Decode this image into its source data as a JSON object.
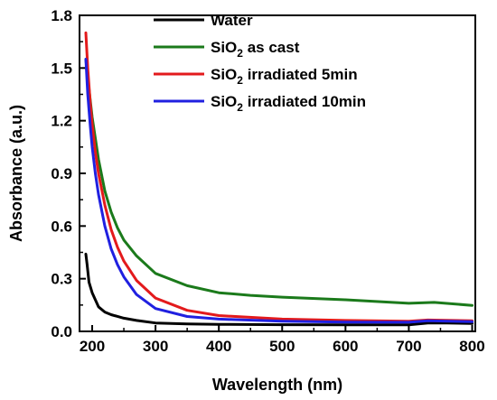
{
  "chart_data": {
    "type": "line",
    "xlabel": "Wavelength (nm)",
    "ylabel": "Absorbance (a.u.)",
    "xlim": [
      180,
      805
    ],
    "ylim": [
      0,
      1.8
    ],
    "x_ticks": [
      200,
      300,
      400,
      500,
      600,
      700,
      800
    ],
    "x_tick_labels": [
      "200",
      "300",
      "400",
      "500",
      "600",
      "700",
      "800"
    ],
    "y_ticks": [
      0.0,
      0.3,
      0.6,
      0.9,
      1.2,
      1.5,
      1.8
    ],
    "y_tick_labels": [
      "0.0",
      "0.3",
      "0.6",
      "0.9",
      "1.2",
      "1.5",
      "1.8"
    ],
    "grid": false,
    "legend_position": "top-right",
    "series": [
      {
        "name": "Water",
        "legend": {
          "main": "Water",
          "sub": "",
          "rest": ""
        },
        "color": "#000000",
        "x": [
          190,
          192,
          195,
          200,
          205,
          210,
          220,
          230,
          250,
          270,
          300,
          350,
          400,
          500,
          600,
          700,
          730,
          760,
          800
        ],
        "y": [
          0.44,
          0.38,
          0.28,
          0.22,
          0.18,
          0.14,
          0.11,
          0.095,
          0.075,
          0.062,
          0.048,
          0.042,
          0.04,
          0.038,
          0.037,
          0.037,
          0.048,
          0.048,
          0.045
        ]
      },
      {
        "name": "SiO2 as cast",
        "legend": {
          "main": "SiO",
          "sub": "2",
          "rest": " as cast"
        },
        "color": "#1b7a1b",
        "x": [
          190,
          195,
          200,
          210,
          220,
          230,
          240,
          250,
          270,
          300,
          350,
          400,
          450,
          500,
          600,
          700,
          740,
          800
        ],
        "y": [
          1.55,
          1.38,
          1.22,
          0.98,
          0.8,
          0.68,
          0.59,
          0.52,
          0.43,
          0.33,
          0.26,
          0.22,
          0.205,
          0.195,
          0.18,
          0.16,
          0.165,
          0.148
        ]
      },
      {
        "name": "SiO2 irradiated 5min",
        "legend": {
          "main": "SiO",
          "sub": "2",
          "rest": " irradiated 5min"
        },
        "color": "#e31a1c",
        "x": [
          190,
          193,
          197,
          200,
          205,
          210,
          220,
          230,
          240,
          250,
          270,
          300,
          350,
          400,
          500,
          600,
          700,
          730,
          800
        ],
        "y": [
          1.7,
          1.5,
          1.3,
          1.18,
          1.02,
          0.9,
          0.72,
          0.58,
          0.48,
          0.4,
          0.29,
          0.19,
          0.12,
          0.09,
          0.07,
          0.062,
          0.058,
          0.065,
          0.06
        ]
      },
      {
        "name": "SiO2 irradiated 10min",
        "legend": {
          "main": "SiO",
          "sub": "2",
          "rest": " irradiated 10min"
        },
        "color": "#2020e0",
        "x": [
          190,
          193,
          197,
          200,
          205,
          210,
          220,
          230,
          240,
          250,
          270,
          300,
          350,
          400,
          500,
          600,
          700,
          730,
          800
        ],
        "y": [
          1.55,
          1.35,
          1.17,
          1.05,
          0.9,
          0.78,
          0.6,
          0.47,
          0.38,
          0.31,
          0.21,
          0.13,
          0.085,
          0.07,
          0.058,
          0.053,
          0.052,
          0.06,
          0.055
        ]
      }
    ]
  }
}
